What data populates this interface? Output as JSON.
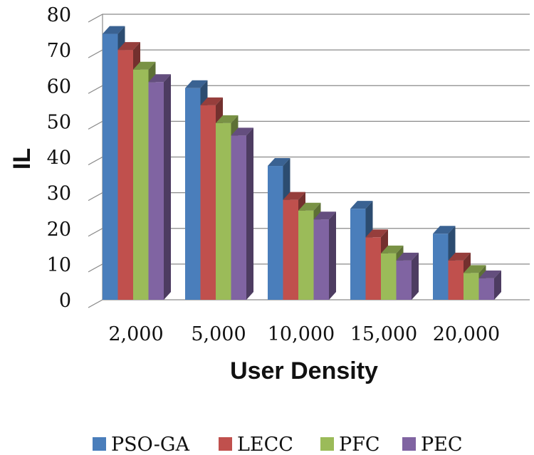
{
  "chart_data": {
    "type": "bar",
    "style": "3d-clustered-column",
    "categories": [
      "2,000",
      "5,000",
      "10,000",
      "15,000",
      "20,000"
    ],
    "series": [
      {
        "name": "PSO-GA",
        "color": "#4a7ebb",
        "values": [
          74.5,
          59.3,
          37.5,
          25.5,
          18.5
        ]
      },
      {
        "name": "LECC",
        "color": "#c0504d",
        "values": [
          70,
          54.5,
          28,
          17.5,
          11
        ]
      },
      {
        "name": "PFC",
        "color": "#9bbb59",
        "values": [
          64.5,
          49.5,
          25,
          13,
          7.5
        ]
      },
      {
        "name": "PEC",
        "color": "#8064a2",
        "values": [
          61,
          46,
          22.5,
          11,
          6
        ]
      }
    ],
    "ylim": [
      0,
      80
    ],
    "yticks": [
      0,
      10,
      20,
      30,
      40,
      50,
      60,
      70,
      80
    ],
    "xlabel": "User Density",
    "ylabel": "IL",
    "grid": true,
    "legend_position": "bottom"
  }
}
